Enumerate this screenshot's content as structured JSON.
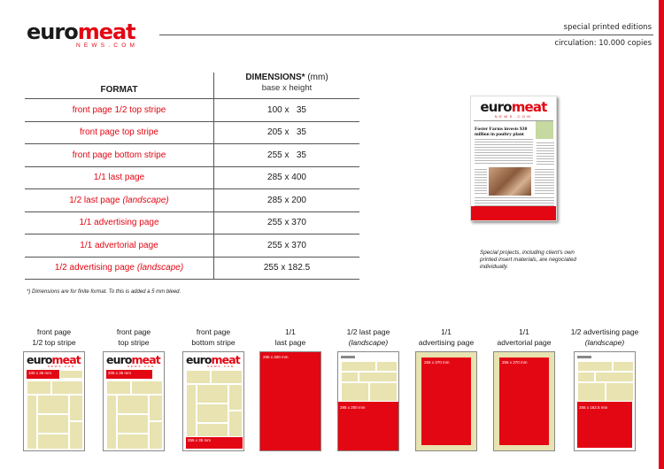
{
  "header": {
    "logo_main_1": "euro",
    "logo_main_2": "meat",
    "logo_sub": "NEWS.COM",
    "title": "special printed editions",
    "circulation": "circulation: 10.000 copies"
  },
  "table": {
    "col_format": "FORMAT",
    "col_dim": "DIMENSIONS*",
    "col_dim_unit": "(mm)",
    "col_dim_sub": "base x height",
    "rows": [
      {
        "format": "front page 1/2 top stripe",
        "format_note": "",
        "dim": "100 x   35"
      },
      {
        "format": "front page top stripe",
        "format_note": "",
        "dim": "205 x   35"
      },
      {
        "format": "front page bottom stripe",
        "format_note": "",
        "dim": "255 x   35"
      },
      {
        "format": "1/1 last page",
        "format_note": "",
        "dim": "285 x 400"
      },
      {
        "format": "1/2 last page",
        "format_note": "(landscape)",
        "dim": "285 x 200"
      },
      {
        "format": "1/1 advertising page",
        "format_note": "",
        "dim": "255 x 370"
      },
      {
        "format": "1/1 advertorial page",
        "format_note": "",
        "dim": "255 x 370"
      },
      {
        "format": "1/2 advertising page",
        "format_note": "(landscape)",
        "dim": "255 x 182.5"
      }
    ]
  },
  "footnote": "*) Dimensions are for finite format. To this is added a 5 mm bleed.",
  "preview": {
    "logo_1": "euro",
    "logo_2": "meat",
    "logo_sub": "NEWS.COM",
    "headline": "Foster Farms invests $30 million in poultry plant",
    "note": "Special projects, including client's own printed insert materials, are negociated individually."
  },
  "thumbnails": [
    {
      "line1": "front page",
      "line2": "1/2 top stripe",
      "italic2": false,
      "ad": "100 x 35 mm"
    },
    {
      "line1": "front page",
      "line2": "top stripe",
      "italic2": false,
      "ad": "205 x 35 mm"
    },
    {
      "line1": "front page",
      "line2": "bottom stripe",
      "italic2": false,
      "ad": "255 x 35 mm"
    },
    {
      "line1": "1/1",
      "line2": "last page",
      "italic2": false,
      "ad": "285 x 400 mm"
    },
    {
      "line1": "1/2 last page",
      "line2": "(landscape)",
      "italic2": true,
      "ad": "285 x 200 mm"
    },
    {
      "line1": "1/1",
      "line2": "advertising page",
      "italic2": false,
      "ad": "255 x 370 mm"
    },
    {
      "line1": "1/1",
      "line2": "advertorial page",
      "italic2": false,
      "ad": "255 x 370 mm"
    },
    {
      "line1": "1/2 advertising page",
      "line2": "(landscape)",
      "italic2": true,
      "ad": "255 x 182.5 mm"
    }
  ],
  "colors": {
    "accent": "#e30613",
    "block": "#e8e3b0",
    "text": "#1a1a1a"
  }
}
